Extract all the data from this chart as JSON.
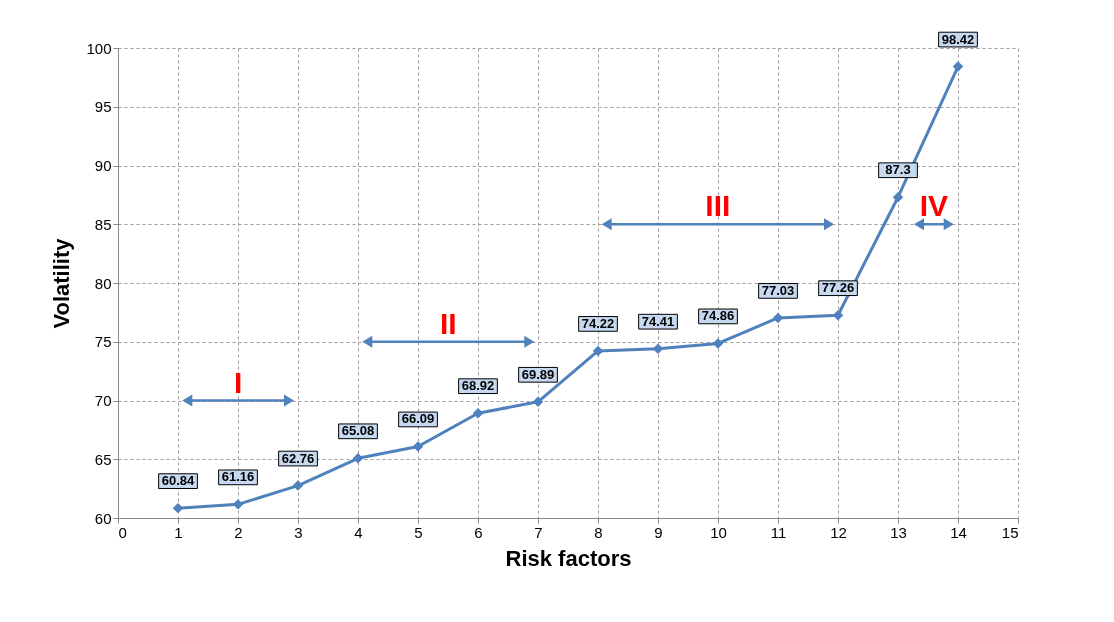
{
  "chart_data": {
    "type": "line",
    "xlabel": "Risk factors",
    "ylabel": "Volatility",
    "x": [
      1,
      2,
      3,
      4,
      5,
      6,
      7,
      8,
      9,
      10,
      11,
      12,
      13,
      14
    ],
    "series": [
      {
        "color": "#4f81bd",
        "values": [
          60.84,
          61.16,
          62.76,
          65.08,
          66.09,
          68.92,
          69.89,
          74.22,
          74.41,
          74.86,
          77.03,
          77.26,
          87.3,
          98.42
        ]
      }
    ],
    "xlim": [
      0,
      15
    ],
    "xticks": [
      0,
      1,
      2,
      3,
      4,
      5,
      6,
      7,
      8,
      9,
      10,
      11,
      12,
      13,
      14,
      15
    ],
    "ylim": [
      60,
      100
    ],
    "yticks": [
      60,
      65,
      70,
      75,
      80,
      85,
      90,
      95,
      100
    ],
    "grid": true,
    "marker": "diamond",
    "line_style": "solid",
    "data_labels": true,
    "annotations": [
      "I",
      "II",
      "III",
      "IV"
    ]
  }
}
